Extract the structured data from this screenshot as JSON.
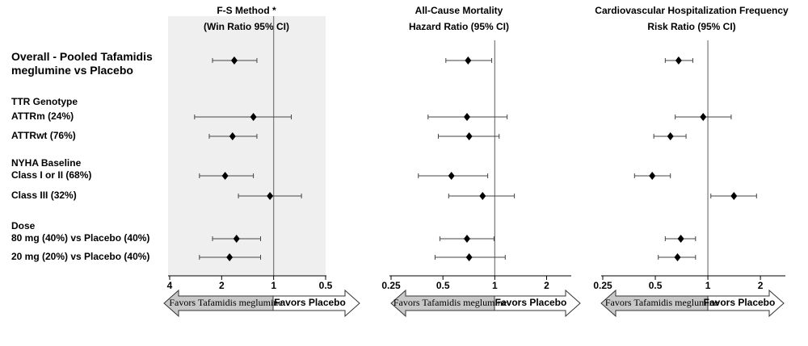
{
  "rows": [
    "Overall - Pooled Tafamidis meglumine vs Placebo",
    "TTR Genotype",
    "ATTRm (24%)",
    "ATTRwt (76%)",
    "NYHA Baseline",
    "Class I or II (68%)",
    "Class III (32%)",
    "Dose",
    "80 mg (40%) vs Placebo (40%)",
    "20 mg (20%) vs Placebo (40%)"
  ],
  "chart_data": [
    {
      "type": "forest",
      "title": "F-S Method *",
      "subtitle": "(Win Ratio 95% CI)",
      "log_scale": true,
      "shaded": true,
      "reference_line": 1,
      "xlim": [
        4,
        0.5
      ],
      "xticks": [
        4,
        2,
        1,
        0.5
      ],
      "values": [
        1.69,
        null,
        1.31,
        1.73,
        null,
        1.91,
        1.05,
        null,
        1.64,
        1.8
      ],
      "ci_low": [
        1.25,
        null,
        0.79,
        1.25,
        null,
        1.31,
        0.69,
        null,
        1.19,
        1.19
      ],
      "ci_high": [
        2.26,
        null,
        2.87,
        2.36,
        null,
        2.69,
        1.6,
        null,
        2.26,
        2.69
      ],
      "arrow_left": "Favors Tafamidis meglumine",
      "arrow_right": "Favors Placebo"
    },
    {
      "type": "forest",
      "title": "All-Cause Mortality",
      "subtitle": "Hazard Ratio (95% CI)",
      "log_scale": true,
      "shaded": false,
      "reference_line": 1,
      "xlim": [
        0.25,
        2.75
      ],
      "xticks": [
        0.25,
        0.5,
        1,
        2
      ],
      "values": [
        0.7,
        null,
        0.69,
        0.71,
        null,
        0.56,
        0.85,
        null,
        0.69,
        0.71
      ],
      "ci_low": [
        0.52,
        null,
        0.41,
        0.47,
        null,
        0.36,
        0.54,
        null,
        0.48,
        0.45
      ],
      "ci_high": [
        0.96,
        null,
        1.18,
        1.06,
        null,
        0.91,
        1.3,
        null,
        0.99,
        1.15
      ],
      "arrow_left": "Favors Tafamidis meglumine",
      "arrow_right": "Favors Placebo"
    },
    {
      "type": "forest",
      "title": "Cardiovascular Hospitalization Frequency",
      "subtitle": "Risk Ratio (95% CI)",
      "log_scale": true,
      "shaded": false,
      "reference_line": 1,
      "xlim": [
        0.25,
        2.75
      ],
      "xticks": [
        0.25,
        0.5,
        1,
        2
      ],
      "values": [
        0.68,
        null,
        0.94,
        0.61,
        null,
        0.48,
        1.41,
        null,
        0.7,
        0.67
      ],
      "ci_low": [
        0.57,
        null,
        0.65,
        0.49,
        null,
        0.38,
        1.04,
        null,
        0.57,
        0.52
      ],
      "ci_high": [
        0.82,
        null,
        1.36,
        0.75,
        null,
        0.61,
        1.9,
        null,
        0.85,
        0.85
      ],
      "arrow_left": "Favors Tafamidis meglumine",
      "arrow_right": "Favors Placebo"
    }
  ]
}
